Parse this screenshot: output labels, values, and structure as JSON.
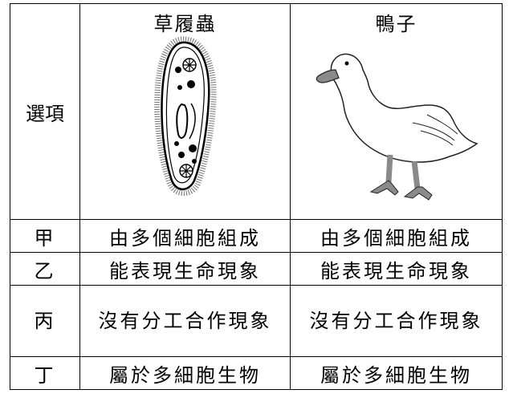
{
  "table": {
    "header": {
      "row_label": "選項",
      "col_a": "草履蟲",
      "col_b": "鴨子"
    },
    "rows": [
      {
        "label": "甲",
        "a": "由多個細胞組成",
        "b": "由多個細胞組成"
      },
      {
        "label": "乙",
        "a": "能表現生命現象",
        "b": "能表現生命現象"
      },
      {
        "label": "丙",
        "a": "沒有分工合作現象",
        "b": "沒有分工合作現象"
      },
      {
        "label": "丁",
        "a": "屬於多細胞生物",
        "b": "屬於多細胞生物"
      }
    ]
  },
  "images": {
    "col_a": "paramecium-illustration",
    "col_b": "duck-illustration"
  },
  "colors": {
    "duck_beak": "#8a8a8a",
    "duck_feet": "#8a8a8a",
    "line": "#000000"
  }
}
